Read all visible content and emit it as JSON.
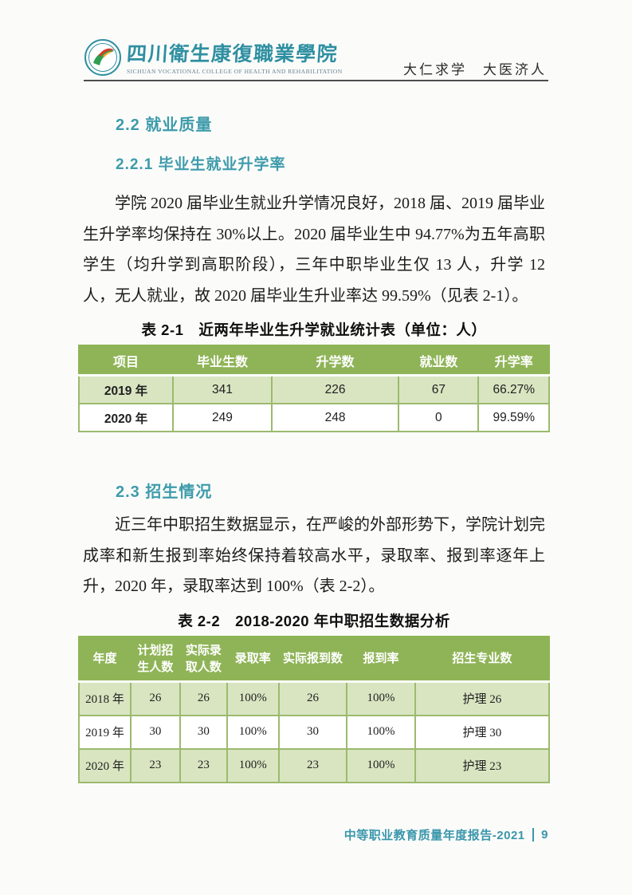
{
  "header": {
    "college_name_zh": "四川衛生康復職業學院",
    "college_name_en": "SICHUAN VOCATIONAL COLLEGE OF HEALTH AND REHABILITATION",
    "slogan": "大仁求学　大医济人"
  },
  "sections": {
    "s22_title": "2.2 就业质量",
    "s221_title": "2.2.1 毕业生就业升学率",
    "p1": "学院 2020 届毕业生就业升学情况良好，2018 届、2019 届毕业生升学率均保持在 30%以上。2020 届毕业生中 94.77%为五年高职学生（均升学到高职阶段），三年中职毕业生仅 13 人，升学 12 人，无人就业，故 2020 届毕业生升业率达 99.59%（见表 2-1）。",
    "s23_title": "2.3 招生情况",
    "p2": "近三年中职招生数据显示，在严峻的外部形势下，学院计划完成率和新生报到率始终保持着较高水平，录取率、报到率逐年上升，2020 年，录取率达到 100%（表 2-2）。"
  },
  "table1": {
    "title": "表 2-1　近两年毕业生升学就业统计表（单位：人）",
    "headers": [
      "项目",
      "毕业生数",
      "升学数",
      "就业数",
      "升学率"
    ],
    "rows": [
      [
        "2019 年",
        "341",
        "226",
        "67",
        "66.27%"
      ],
      [
        "2020 年",
        "249",
        "248",
        "0",
        "99.59%"
      ]
    ]
  },
  "table2": {
    "title": "表 2-2　2018-2020 年中职招生数据分析",
    "headers": [
      "年度",
      "计划招生人数",
      "实际录取人数",
      "录取率",
      "实际报到数",
      "报到率",
      "招生专业数"
    ],
    "rows": [
      [
        "2018 年",
        "26",
        "26",
        "100%",
        "26",
        "100%",
        "护理 26"
      ],
      [
        "2019 年",
        "30",
        "30",
        "100%",
        "30",
        "100%",
        "护理 30"
      ],
      [
        "2020 年",
        "23",
        "23",
        "100%",
        "23",
        "100%",
        "护理 23"
      ]
    ]
  },
  "footer": {
    "report_title": "中等职业教育质量年度报告-2021",
    "page_number": "9"
  },
  "colors": {
    "accent_teal": "#3e9bab",
    "footer_teal": "#3a96ab",
    "table_header_green": "#8fb457",
    "table_row_light_green": "#d9e5c1",
    "table_border_green": "#9cba6e",
    "header_rule_gray": "#4d4d4d"
  }
}
